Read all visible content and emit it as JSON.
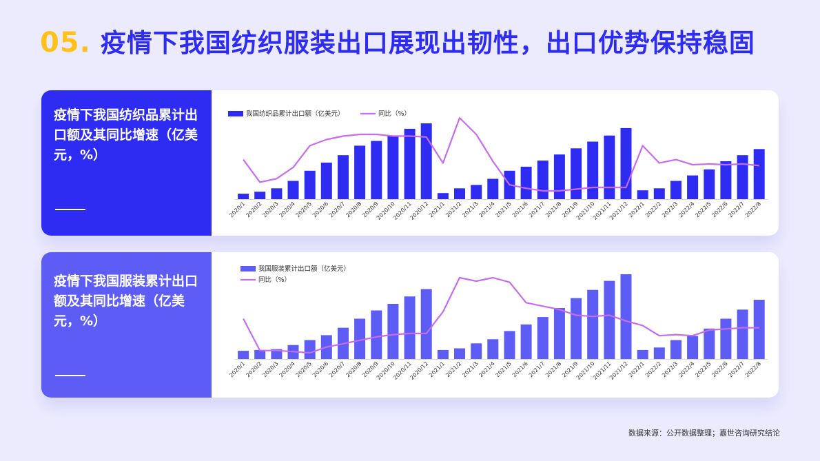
{
  "title": {
    "number": "05.",
    "text": "疫情下我国纺织服装出口展现出韧性，出口优势保持稳固"
  },
  "source": "数据来源：公开数据整理；嘉世咨询研究结论",
  "colors": {
    "bar1": "#2E2CF2",
    "bar2": "#5D5CF5",
    "line": "#C86BF0"
  },
  "panels": [
    {
      "title": "疫情下我国纺织品累计出口额及其同比增速（亿美 元，%）"
    },
    {
      "title": "疫情下我国服装累计出口额及其同比增速（亿美元，%）"
    }
  ],
  "chart_data": [
    {
      "type": "bar",
      "categories": [
        "2020/1",
        "2020/2",
        "2020/3",
        "2020/4",
        "2020/5",
        "2020/6",
        "2020/7",
        "2020/8",
        "2020/9",
        "2020/10",
        "2020/11",
        "2020/12",
        "2021/1",
        "2021/2",
        "2021/3",
        "2021/4",
        "2021/5",
        "2021/6",
        "2021/7",
        "2021/8",
        "2021/9",
        "2021/10",
        "2021/11",
        "2021/12",
        "2022/1",
        "2022/2",
        "2022/3",
        "2022/4",
        "2022/5",
        "2022/6",
        "2022/7",
        "2022/8"
      ],
      "series": [
        {
          "name": "我国纺织品累计出口额（亿美元）",
          "kind": "bar",
          "values": [
            8,
            11,
            16,
            27,
            42,
            54,
            65,
            79,
            86,
            94,
            104,
            112,
            9,
            16,
            21,
            30,
            42,
            48,
            57,
            66,
            75,
            85,
            94,
            105,
            13,
            16,
            27,
            35,
            44,
            56,
            65,
            74
          ]
        },
        {
          "name": "同比（%）",
          "kind": "line",
          "values": [
            14,
            -12,
            -8,
            5,
            30,
            37,
            41,
            43,
            43,
            41,
            41,
            40,
            10,
            62,
            43,
            12,
            -15,
            -19,
            -22,
            -22,
            -20,
            -18,
            -18,
            -18,
            30,
            10,
            14,
            8,
            9,
            8,
            9,
            7
          ]
        }
      ],
      "legend": "top-left"
    },
    {
      "type": "bar",
      "categories": [
        "2020/1",
        "2020/2",
        "2020/3",
        "2020/4",
        "2020/5",
        "2020/6",
        "2020/7",
        "2020/8",
        "2020/9",
        "2020/10",
        "2020/11",
        "2020/12",
        "2021/1",
        "2021/2",
        "2021/3",
        "2021/4",
        "2021/5",
        "2021/6",
        "2021/7",
        "2021/8",
        "2021/9",
        "2021/10",
        "2021/11",
        "2021/12",
        "2022/1",
        "2022/2",
        "2022/3",
        "2022/4",
        "2022/5",
        "2022/6",
        "2022/7",
        "2022/8"
      ],
      "series": [
        {
          "name": "我国服装累计出口额（亿美元）",
          "kind": "bar",
          "values": [
            10,
            11,
            12,
            17,
            23,
            29,
            38,
            49,
            59,
            67,
            76,
            85,
            11,
            13,
            19,
            24,
            34,
            42,
            51,
            62,
            74,
            84,
            95,
            103,
            11,
            14,
            23,
            28,
            37,
            49,
            60,
            72
          ]
        },
        {
          "name": "同比（%）",
          "kind": "line",
          "values": [
            22,
            -6,
            -6,
            -7,
            -8,
            -3,
            0,
            3,
            6,
            8,
            9,
            9,
            28,
            58,
            55,
            58,
            54,
            36,
            33,
            30,
            25,
            24,
            25,
            20,
            16,
            7,
            8,
            7,
            12,
            13,
            14,
            14
          ]
        }
      ],
      "legend": "top-left"
    }
  ]
}
